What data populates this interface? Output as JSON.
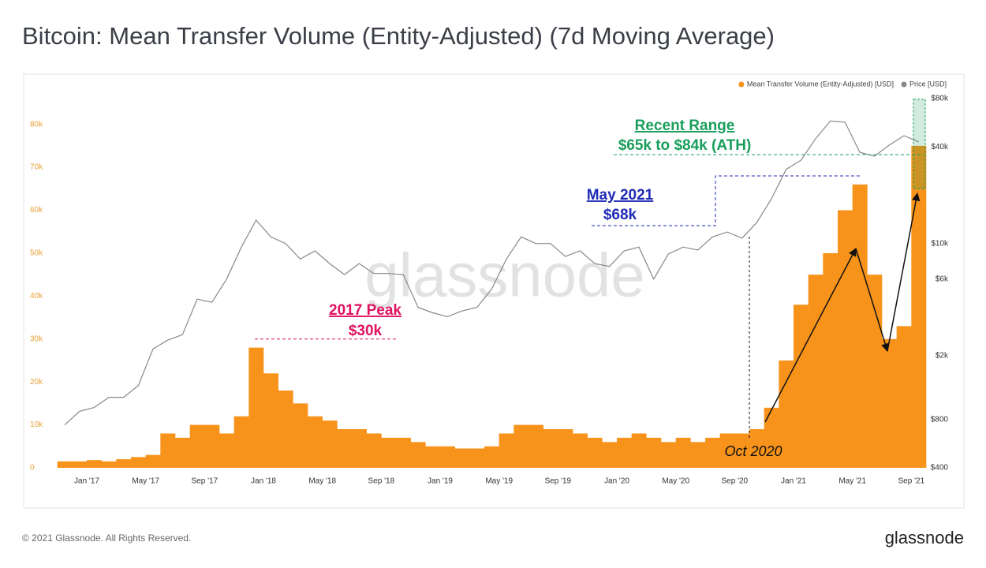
{
  "chart_data": {
    "type": "bar",
    "title": "Bitcoin: Mean Transfer Volume (Entity-Adjusted) (7d Moving Average)",
    "watermark": "glassnode",
    "footer": "© 2021 Glassnode. All Rights Reserved.",
    "brand": "glassnode",
    "legend": "top-right",
    "grid": false,
    "x": [
      "2016-11",
      "2016-12",
      "2017-01",
      "2017-02",
      "2017-03",
      "2017-04",
      "2017-05",
      "2017-06",
      "2017-07",
      "2017-08",
      "2017-09",
      "2017-10",
      "2017-11",
      "2017-12",
      "2018-01",
      "2018-02",
      "2018-03",
      "2018-04",
      "2018-05",
      "2018-06",
      "2018-07",
      "2018-08",
      "2018-09",
      "2018-10",
      "2018-11",
      "2018-12",
      "2019-01",
      "2019-02",
      "2019-03",
      "2019-04",
      "2019-05",
      "2019-06",
      "2019-07",
      "2019-08",
      "2019-09",
      "2019-10",
      "2019-11",
      "2019-12",
      "2020-01",
      "2020-02",
      "2020-03",
      "2020-04",
      "2020-05",
      "2020-06",
      "2020-07",
      "2020-08",
      "2020-09",
      "2020-10",
      "2020-11",
      "2020-12",
      "2021-01",
      "2021-02",
      "2021-03",
      "2021-04",
      "2021-05",
      "2021-06",
      "2021-07",
      "2021-08",
      "2021-09"
    ],
    "xlim": [
      "2016-10",
      "2021-10"
    ],
    "xticks": [
      {
        "value": "2017-01",
        "label": "Jan '17"
      },
      {
        "value": "2017-05",
        "label": "May '17"
      },
      {
        "value": "2017-09",
        "label": "Sep '17"
      },
      {
        "value": "2018-01",
        "label": "Jan '18"
      },
      {
        "value": "2018-05",
        "label": "May '18"
      },
      {
        "value": "2018-09",
        "label": "Sep '18"
      },
      {
        "value": "2019-01",
        "label": "Jan '19"
      },
      {
        "value": "2019-05",
        "label": "May '19"
      },
      {
        "value": "2019-09",
        "label": "Sep '19"
      },
      {
        "value": "2020-01",
        "label": "Jan '20"
      },
      {
        "value": "2020-05",
        "label": "May '20"
      },
      {
        "value": "2020-09",
        "label": "Sep '20"
      },
      {
        "value": "2021-01",
        "label": "Jan '21"
      },
      {
        "value": "2021-05",
        "label": "May '21"
      },
      {
        "value": "2021-09",
        "label": "Sep '21"
      }
    ],
    "ylim": [
      0,
      86000
    ],
    "yticks": [
      0,
      {
        "value": 10000,
        "label": "10k"
      },
      {
        "value": 20000,
        "label": "20k"
      },
      {
        "value": 30000,
        "label": "30k"
      },
      {
        "value": 40000,
        "label": "40k"
      },
      {
        "value": 50000,
        "label": "50k"
      },
      {
        "value": 60000,
        "label": "60k"
      },
      {
        "value": 70000,
        "label": "70k"
      },
      {
        "value": 80000,
        "label": "80k"
      }
    ],
    "y2lim": [
      400,
      80000
    ],
    "y2scale": "log",
    "y2ticks": [
      {
        "value": 400,
        "label": "$400"
      },
      {
        "value": 800,
        "label": "$800"
      },
      {
        "value": 2000,
        "label": "$2k"
      },
      {
        "value": 6000,
        "label": "$6k"
      },
      {
        "value": 10000,
        "label": "$10k"
      },
      {
        "value": 40000,
        "label": "$40k"
      },
      {
        "value": 80000,
        "label": "$80k"
      }
    ],
    "series": [
      {
        "name": "Mean Transfer Volume (Entity-Adjusted) [USD]",
        "type": "bar",
        "color": "#f7931a",
        "values": [
          1500,
          1500,
          1800,
          1500,
          2000,
          2500,
          3000,
          8000,
          7000,
          10000,
          10000,
          8000,
          12000,
          28000,
          22000,
          18000,
          15000,
          12000,
          11000,
          9000,
          9000,
          8000,
          7000,
          7000,
          6000,
          5000,
          5000,
          4500,
          4500,
          5000,
          8000,
          10000,
          10000,
          9000,
          9000,
          8000,
          7000,
          6000,
          7000,
          8000,
          7000,
          6000,
          7000,
          6000,
          7000,
          8000,
          8000,
          9000,
          14000,
          25000,
          38000,
          45000,
          50000,
          60000,
          66000,
          45000,
          30000,
          33000,
          75000
        ]
      },
      {
        "name": "Price [USD]",
        "type": "line",
        "axis": "y2",
        "color": "#888888",
        "values": [
          740,
          900,
          950,
          1100,
          1100,
          1300,
          2200,
          2500,
          2700,
          4500,
          4300,
          6000,
          9500,
          14000,
          11000,
          10000,
          8000,
          9000,
          7500,
          6400,
          7500,
          6500,
          6500,
          6400,
          4000,
          3700,
          3500,
          3800,
          4000,
          5200,
          8000,
          11000,
          10000,
          10000,
          8300,
          9000,
          7500,
          7200,
          9000,
          9500,
          6000,
          8600,
          9500,
          9100,
          11000,
          11800,
          10800,
          13500,
          19000,
          29000,
          33000,
          45000,
          58000,
          57000,
          37000,
          35000,
          41000,
          47000,
          43000
        ]
      }
    ],
    "annotations": [
      {
        "text": [
          "2017 Peak",
          "$30k"
        ],
        "value": 30000,
        "color": "#e0115f"
      },
      {
        "text": [
          "May 2021",
          "$68k"
        ],
        "value": 68000,
        "color": "#1f2bb5"
      },
      {
        "text": [
          "Recent Range",
          "$65k to $84k (ATH)"
        ],
        "range": [
          65000,
          84000
        ],
        "color": "#1a9e5c"
      },
      {
        "text": [
          "Oct 2020"
        ],
        "x": "2020-10",
        "color": "#111111"
      }
    ]
  }
}
